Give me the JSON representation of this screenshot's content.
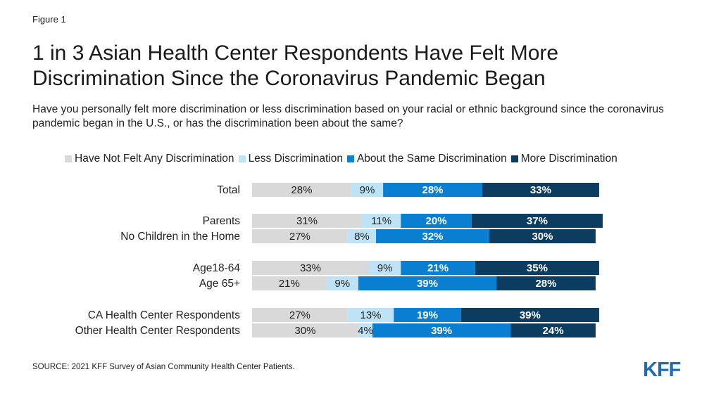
{
  "figure_label": "Figure 1",
  "title": "1 in 3 Asian Health Center Respondents Have Felt More Discrimination Since the Coronavirus Pandemic Began",
  "subtitle": "Have you personally felt more discrimination or less discrimination based on your racial or ethnic background since the coronavirus pandemic began in the U.S., or has the discrimination been about the same?",
  "source": "SOURCE: 2021 KFF Survey of Asian Community Health Center Patients.",
  "logo_text": "KFF",
  "colors": {
    "not_felt": "#d9d9d9",
    "less": "#bfe3f6",
    "same": "#0a7fd1",
    "more": "#0d3c61",
    "text_dark": "#222222",
    "text_light": "#ffffff"
  },
  "chart_data": {
    "type": "bar",
    "orientation": "horizontal-stacked",
    "legend_position": "top",
    "series": [
      {
        "name": "Have Not Felt Any Discrimination",
        "color": "#d9d9d9",
        "values": [
          28,
          31,
          27,
          33,
          21,
          27,
          30
        ]
      },
      {
        "name": "Less Discrimination",
        "color": "#bfe3f6",
        "values": [
          9,
          11,
          8,
          9,
          9,
          13,
          4
        ]
      },
      {
        "name": "About the Same Discrimination",
        "color": "#0a7fd1",
        "values": [
          28,
          20,
          32,
          21,
          39,
          19,
          39
        ]
      },
      {
        "name": "More Discrimination",
        "color": "#0d3c61",
        "values": [
          33,
          37,
          30,
          35,
          28,
          39,
          24
        ]
      }
    ],
    "categories": [
      "Total",
      "Parents",
      "No Children in the Home",
      "Age18-64",
      "Age 65+",
      "CA Health Center Respondents",
      "Other Health Center Respondents"
    ],
    "groups": [
      [
        0
      ],
      [
        1,
        2
      ],
      [
        3,
        4
      ],
      [
        5,
        6
      ]
    ],
    "value_suffix": "%"
  }
}
